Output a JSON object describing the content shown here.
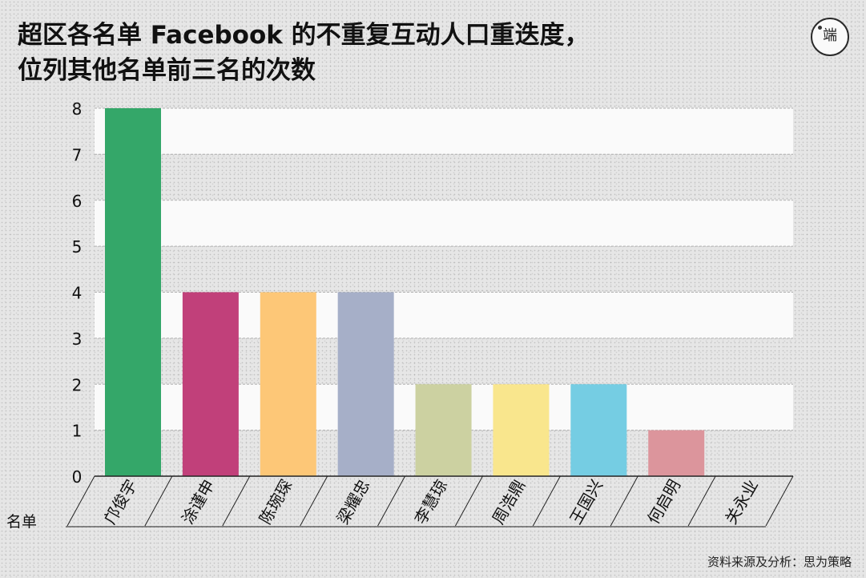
{
  "title_line1": "超区各名单 Facebook 的不重复互动人口重迭度，",
  "title_line2": "位列其他名单前三名的次数",
  "logo_text": "端",
  "source": "资料来源及分析：思为策略",
  "chart_data": {
    "type": "bar",
    "categories": [
      "邝俊宇",
      "涂谨申",
      "陈琬琛",
      "梁耀忠",
      "李慧琼",
      "周浩鼎",
      "王国兴",
      "何启明",
      "关永业"
    ],
    "values": [
      8,
      4,
      4,
      4,
      2,
      2,
      2,
      1,
      0
    ],
    "colors": [
      "#34a769",
      "#c1407a",
      "#fdc777",
      "#a6afc8",
      "#ccd1a1",
      "#f9e68d",
      "#75cde3",
      "#dc959c",
      "#dc959c"
    ],
    "xlabel": "名单",
    "ylabel": "",
    "ylim": [
      0,
      8
    ],
    "yticks": [
      "0",
      "1",
      "2",
      "3",
      "4",
      "5",
      "6",
      "7",
      "8"
    ],
    "grid": true,
    "legend": "none"
  }
}
